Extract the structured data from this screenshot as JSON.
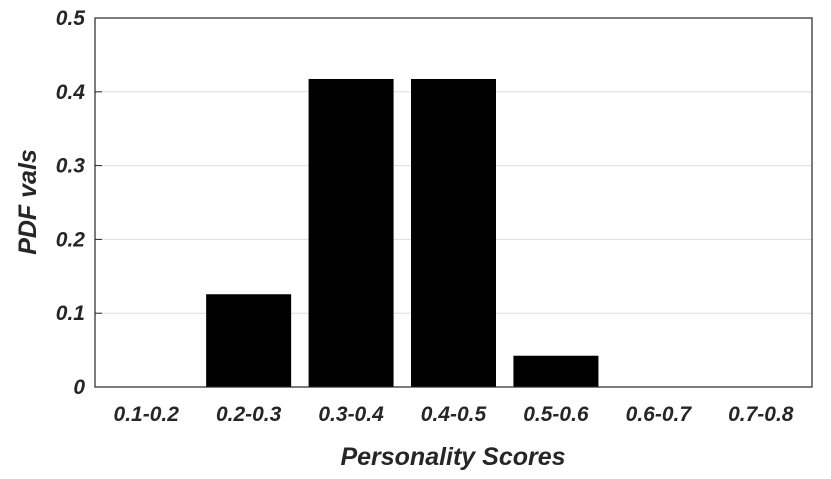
{
  "chart_data": {
    "type": "bar",
    "x_label": "Personality Scores",
    "y_label": "PDF vals",
    "categories": [
      "0.1-0.2",
      "0.2-0.3",
      "0.3-0.4",
      "0.4-0.5",
      "0.5-0.6",
      "0.6-0.7",
      "0.7-0.8"
    ],
    "values": [
      0,
      0.125,
      0.4167,
      0.4167,
      0.0417,
      0,
      0
    ],
    "color": "#000000",
    "ylim": [
      0,
      0.5
    ],
    "yticks": [
      0,
      0.1,
      0.2,
      0.3,
      0.4,
      0.5
    ],
    "grid": true
  }
}
